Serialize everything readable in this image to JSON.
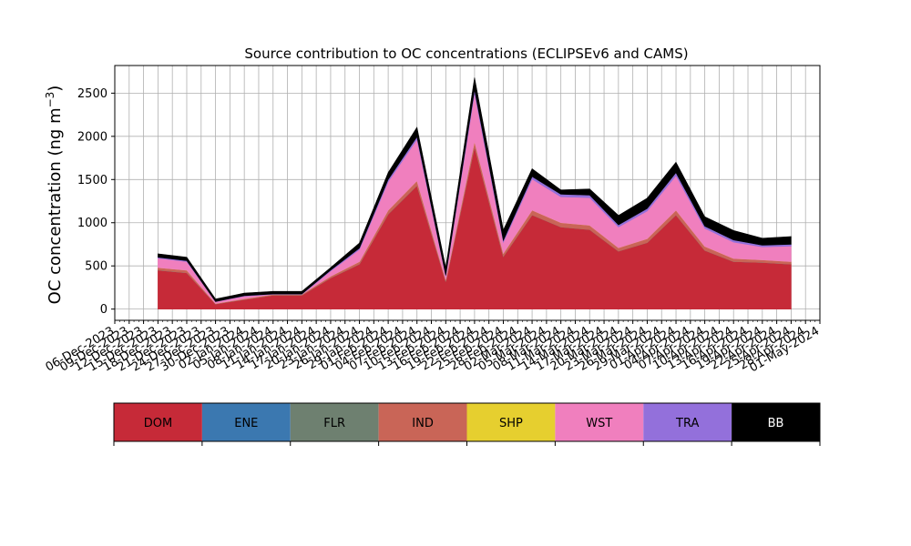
{
  "chart_data": {
    "type": "area",
    "title": "Source contribution to OC concentrations (ECLIPSEv6 and CAMS)",
    "ylabel": "OC concentration (ng m",
    "ylabel_sup": "−3",
    "ylabel_close": ")",
    "xlabel": "",
    "ylim": [
      -130,
      2820
    ],
    "xlim": [
      "2023-12-06",
      "2024-05-01"
    ],
    "grid": true,
    "stacked": true,
    "yticks": [
      0,
      500,
      1000,
      1500,
      2000,
      2500
    ],
    "xtick_labels": [
      "06-Dec-2023",
      "09-Dec-2023",
      "12-Dec-2023",
      "15-Dec-2023",
      "18-Dec-2023",
      "21-Dec-2023",
      "24-Dec-2023",
      "27-Dec-2023",
      "30-Dec-2023",
      "02-Jan-2024",
      "05-Jan-2024",
      "08-Jan-2024",
      "11-Jan-2024",
      "14-Jan-2024",
      "17-Jan-2024",
      "20-Jan-2024",
      "23-Jan-2024",
      "26-Jan-2024",
      "29-Jan-2024",
      "01-Feb-2024",
      "04-Feb-2024",
      "07-Feb-2024",
      "10-Feb-2024",
      "13-Feb-2024",
      "16-Feb-2024",
      "19-Feb-2024",
      "22-Feb-2024",
      "25-Feb-2024",
      "28-Feb-2024",
      "02-Mar-2024",
      "05-Mar-2024",
      "08-Mar-2024",
      "11-Mar-2024",
      "14-Mar-2024",
      "17-Mar-2024",
      "20-Mar-2024",
      "23-Mar-2024",
      "26-Mar-2024",
      "29-Mar-2024",
      "01-Apr-2024",
      "04-Apr-2024",
      "07-Apr-2024",
      "10-Apr-2024",
      "13-Apr-2024",
      "16-Apr-2024",
      "19-Apr-2024",
      "22-Apr-2024",
      "25-Apr-2024",
      "28-Apr-2024",
      "01-May-2024"
    ],
    "x": [
      "2023-12-15",
      "2023-12-21",
      "2023-12-27",
      "2024-01-02",
      "2024-01-08",
      "2024-01-14",
      "2024-01-20",
      "2024-01-26",
      "2024-02-01",
      "2024-02-07",
      "2024-02-13",
      "2024-02-19",
      "2024-02-25",
      "2024-03-02",
      "2024-03-08",
      "2024-03-14",
      "2024-03-20",
      "2024-03-26",
      "2024-04-01",
      "2024-04-07",
      "2024-04-13",
      "2024-04-19",
      "2024-04-25"
    ],
    "series": [
      {
        "name": "DOM",
        "color": "#c62a38",
        "values": [
          450,
          420,
          60,
          110,
          160,
          160,
          360,
          520,
          1100,
          1430,
          320,
          1880,
          610,
          1090,
          950,
          920,
          670,
          770,
          1090,
          680,
          550,
          540,
          520
        ]
      },
      {
        "name": "ENE",
        "color": "#3b78b0",
        "values": [
          0,
          0,
          0,
          0,
          0,
          0,
          0,
          0,
          0,
          0,
          0,
          0,
          0,
          0,
          0,
          0,
          0,
          0,
          0,
          0,
          0,
          0,
          0
        ]
      },
      {
        "name": "FLR",
        "color": "#6e8070",
        "values": [
          0,
          0,
          0,
          0,
          0,
          0,
          0,
          0,
          0,
          0,
          0,
          0,
          0,
          0,
          0,
          0,
          0,
          0,
          0,
          0,
          0,
          0,
          0
        ]
      },
      {
        "name": "IND",
        "color": "#c96557",
        "values": [
          30,
          30,
          5,
          10,
          10,
          10,
          20,
          30,
          45,
          55,
          20,
          60,
          35,
          55,
          50,
          50,
          40,
          45,
          55,
          45,
          35,
          30,
          30
        ]
      },
      {
        "name": "SHP",
        "color": "#e6cf2f",
        "values": [
          0,
          0,
          0,
          0,
          0,
          0,
          0,
          0,
          0,
          0,
          0,
          0,
          0,
          0,
          0,
          0,
          0,
          0,
          0,
          0,
          0,
          0,
          0
        ]
      },
      {
        "name": "WST",
        "color": "#f07fbe",
        "values": [
          110,
          100,
          20,
          30,
          0,
          0,
          60,
          140,
          330,
          480,
          40,
          560,
          130,
          360,
          300,
          320,
          240,
          320,
          400,
          210,
          190,
          150,
          180
        ]
      },
      {
        "name": "TRA",
        "color": "#9370db",
        "values": [
          10,
          10,
          2,
          5,
          5,
          5,
          10,
          15,
          25,
          30,
          10,
          40,
          20,
          30,
          30,
          30,
          25,
          30,
          35,
          25,
          25,
          20,
          20
        ]
      },
      {
        "name": "BB",
        "color": "#000000",
        "values": [
          40,
          40,
          30,
          30,
          30,
          30,
          30,
          60,
          80,
          110,
          90,
          140,
          120,
          90,
          50,
          70,
          110,
          120,
          120,
          110,
          110,
          80,
          90
        ]
      }
    ]
  }
}
